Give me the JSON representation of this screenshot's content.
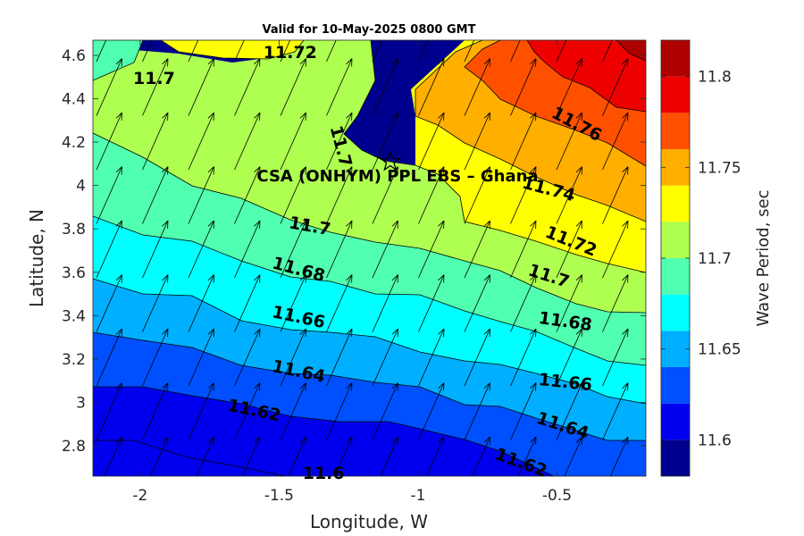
{
  "chart_data": {
    "type": "contour",
    "title": "Valid for 10-May-2025 0800 GMT",
    "xlabel": "Longitude, W",
    "ylabel": "Latitude, N",
    "xlim": [
      -2.17,
      -0.18
    ],
    "ylim": [
      2.66,
      4.67
    ],
    "xticks": [
      -2,
      -1.5,
      -1,
      -0.5
    ],
    "xtick_labels": [
      "-2",
      "-1.5",
      "-1",
      "-0.5"
    ],
    "yticks": [
      2.8,
      3,
      3.2,
      3.4,
      3.6,
      3.8,
      4,
      4.2,
      4.4,
      4.6
    ],
    "ytick_labels": [
      "2.8",
      "3",
      "3.2",
      "3.4",
      "3.6",
      "3.8",
      "4",
      "4.2",
      "4.4",
      "4.6"
    ],
    "colorbar": {
      "label": "Wave Period, sec",
      "range": [
        11.58,
        11.82
      ],
      "levels": [
        11.58,
        11.6,
        11.62,
        11.64,
        11.66,
        11.68,
        11.7,
        11.72,
        11.74,
        11.76,
        11.78,
        11.8,
        11.82
      ],
      "colors": [
        "#00008f",
        "#0000ef",
        "#0050ff",
        "#00afff",
        "#00ffff",
        "#50ffaf",
        "#afff50",
        "#ffff00",
        "#ffaf00",
        "#ff5000",
        "#ef0000",
        "#af0000"
      ],
      "ticks": [
        11.6,
        11.65,
        11.7,
        11.75,
        11.8
      ],
      "tick_labels": [
        "11.6",
        "11.65",
        "11.7",
        "11.75",
        "11.8"
      ]
    },
    "contour_labels": [
      {
        "text": "11.72",
        "x": -1.46,
        "y": 4.61,
        "angle": 0
      },
      {
        "text": "11.7",
        "x": -1.95,
        "y": 4.49,
        "angle": 0
      },
      {
        "text": "11.7",
        "x": -1.28,
        "y": 4.18,
        "angle": 75
      },
      {
        "text": "11.76",
        "x": -0.43,
        "y": 4.28,
        "angle": 28
      },
      {
        "text": "11.74",
        "x": -0.53,
        "y": 3.98,
        "angle": 15
      },
      {
        "text": "11.7",
        "x": -1.39,
        "y": 3.81,
        "angle": 10
      },
      {
        "text": "11.72",
        "x": -0.45,
        "y": 3.74,
        "angle": 22
      },
      {
        "text": "11.68",
        "x": -1.43,
        "y": 3.61,
        "angle": 15
      },
      {
        "text": "11.7",
        "x": -0.53,
        "y": 3.58,
        "angle": 18
      },
      {
        "text": "11.66",
        "x": -1.43,
        "y": 3.39,
        "angle": 12
      },
      {
        "text": "11.68",
        "x": -0.47,
        "y": 3.37,
        "angle": 8
      },
      {
        "text": "11.64",
        "x": -1.43,
        "y": 3.14,
        "angle": 12
      },
      {
        "text": "11.66",
        "x": -0.47,
        "y": 3.09,
        "angle": 6
      },
      {
        "text": "11.62",
        "x": -1.59,
        "y": 2.96,
        "angle": 12
      },
      {
        "text": "11.64",
        "x": -0.48,
        "y": 2.89,
        "angle": 18
      },
      {
        "text": "11.62",
        "x": -0.63,
        "y": 2.72,
        "angle": 20
      },
      {
        "text": "11.6",
        "x": -1.34,
        "y": 2.67,
        "angle": 0
      }
    ],
    "annotation": {
      "text": "CSA (ONHYM) PPL EBS  – Ghana",
      "x": -1.1,
      "y": 4.11,
      "marker": "pentagram"
    },
    "vectors": "wave direction arrows pointing north-north-east"
  }
}
